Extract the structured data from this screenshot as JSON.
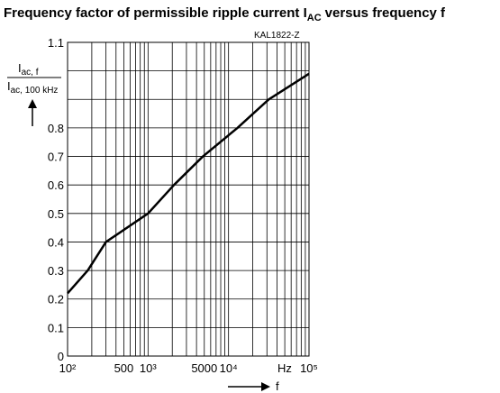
{
  "chart_data": {
    "type": "line",
    "title": [
      "Frequency factor of permissible ripple current I",
      "AC",
      "versus frequency f"
    ],
    "annotation": "KAL1822-Z",
    "y_label": {
      "numerator": [
        "I",
        "ac, f"
      ],
      "denominator": [
        "I",
        "ac, 100 kHz"
      ]
    },
    "x_label": "f",
    "x_unit": "Hz",
    "xscale": "log",
    "xlim": [
      100,
      100000
    ],
    "ylim": [
      0,
      1.1
    ],
    "xticks": [
      {
        "value": 100,
        "label": "10²"
      },
      500,
      {
        "value": 1000,
        "label": "10³"
      },
      5000,
      {
        "value": 10000,
        "label": "10⁴"
      },
      {
        "value": 100000,
        "label": "10⁵"
      }
    ],
    "xminor": [
      200,
      300,
      400,
      600,
      700,
      800,
      900,
      2000,
      3000,
      4000,
      6000,
      7000,
      8000,
      9000,
      20000,
      30000,
      40000,
      50000,
      60000,
      70000,
      80000,
      90000
    ],
    "yticks": [
      0,
      0.1,
      0.2,
      0.3,
      0.4,
      0.5,
      0.6,
      0.7,
      0.8,
      1.1
    ],
    "yminor": [
      0.9,
      1.0
    ],
    "grid": true,
    "color": "#000000",
    "x": [
      100,
      178,
      300,
      1000,
      2100,
      4800,
      12900,
      31600,
      100000
    ],
    "values": [
      0.22,
      0.3,
      0.4,
      0.5,
      0.6,
      0.7,
      0.8,
      0.9,
      0.99
    ]
  }
}
